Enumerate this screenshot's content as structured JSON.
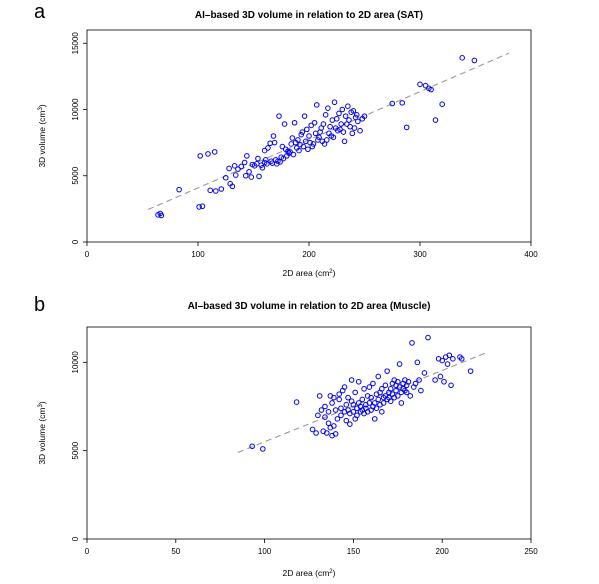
{
  "panels": {
    "a": {
      "letter": "a",
      "title": "AI–based 3D volume in relation to 2D area (SAT)",
      "xlabel": "2D area (cm",
      "ylabel": "3D volume (cm",
      "xlabel_sup": "2",
      "ylabel_sup": "3"
    },
    "b": {
      "letter": "b",
      "title": "AI–based 3D volume in relation to 2D area (Muscle)",
      "xlabel": "2D area (cm",
      "ylabel": "3D volume (cm",
      "xlabel_sup": "2",
      "ylabel_sup": "3"
    }
  },
  "colors": {
    "points": "#0000ff",
    "fit": "#999999",
    "axes": "#000000"
  },
  "chart_data": [
    {
      "type": "scatter",
      "title": "AI–based 3D volume in relation to 2D area (SAT)",
      "xlabel": "2D area (cm2)",
      "ylabel": "3D volume (cm3)",
      "xlim": [
        0,
        400
      ],
      "ylim": [
        0,
        16000
      ],
      "xticks": [
        0,
        100,
        200,
        300,
        400
      ],
      "yticks": [
        0,
        5000,
        10000,
        15000
      ],
      "fit_line": {
        "x": [
          55,
          380
        ],
        "y": [
          2450,
          14250
        ]
      },
      "points": [
        [
          64,
          2050
        ],
        [
          66,
          2150
        ],
        [
          67,
          2000
        ],
        [
          83,
          3950
        ],
        [
          101,
          2650
        ],
        [
          104,
          2700
        ],
        [
          102,
          6500
        ],
        [
          109,
          6650
        ],
        [
          115,
          6800
        ],
        [
          111,
          3900
        ],
        [
          116,
          3850
        ],
        [
          121,
          4000
        ],
        [
          125,
          4850
        ],
        [
          128,
          5550
        ],
        [
          129,
          4400
        ],
        [
          131,
          4200
        ],
        [
          133,
          5750
        ],
        [
          134,
          5050
        ],
        [
          136,
          5500
        ],
        [
          139,
          5700
        ],
        [
          142,
          6000
        ],
        [
          143,
          5000
        ],
        [
          144,
          6500
        ],
        [
          146,
          5300
        ],
        [
          148,
          4900
        ],
        [
          149,
          5850
        ],
        [
          151,
          5750
        ],
        [
          153,
          5900
        ],
        [
          154,
          6300
        ],
        [
          155,
          4950
        ],
        [
          157,
          5800
        ],
        [
          158,
          5600
        ],
        [
          160,
          6000
        ],
        [
          160,
          6900
        ],
        [
          161,
          6200
        ],
        [
          162,
          5900
        ],
        [
          163,
          7100
        ],
        [
          165,
          7450
        ],
        [
          166,
          6100
        ],
        [
          167,
          5950
        ],
        [
          168,
          8000
        ],
        [
          169,
          7500
        ],
        [
          170,
          6200
        ],
        [
          171,
          5900
        ],
        [
          172,
          6100
        ],
        [
          173,
          9500
        ],
        [
          174,
          6050
        ],
        [
          175,
          6400
        ],
        [
          176,
          7200
        ],
        [
          177,
          6300
        ],
        [
          178,
          8900
        ],
        [
          179,
          7000
        ],
        [
          180,
          6500
        ],
        [
          181,
          6850
        ],
        [
          182,
          6700
        ],
        [
          183,
          6800
        ],
        [
          184,
          7400
        ],
        [
          185,
          7850
        ],
        [
          186,
          6600
        ],
        [
          187,
          9000
        ],
        [
          188,
          7500
        ],
        [
          189,
          7100
        ],
        [
          190,
          7700
        ],
        [
          191,
          6900
        ],
        [
          192,
          7350
        ],
        [
          193,
          8100
        ],
        [
          194,
          8300
        ],
        [
          195,
          7200
        ],
        [
          196,
          9500
        ],
        [
          197,
          7600
        ],
        [
          198,
          8500
        ],
        [
          199,
          7000
        ],
        [
          200,
          8000
        ],
        [
          201,
          7500
        ],
        [
          202,
          8800
        ],
        [
          203,
          7200
        ],
        [
          204,
          7400
        ],
        [
          205,
          9000
        ],
        [
          206,
          8200
        ],
        [
          207,
          10350
        ],
        [
          208,
          7700
        ],
        [
          209,
          7900
        ],
        [
          210,
          8300
        ],
        [
          211,
          8600
        ],
        [
          212,
          7600
        ],
        [
          213,
          8900
        ],
        [
          214,
          7400
        ],
        [
          215,
          9600
        ],
        [
          216,
          7700
        ],
        [
          217,
          10100
        ],
        [
          218,
          8200
        ],
        [
          219,
          8700
        ],
        [
          220,
          8000
        ],
        [
          221,
          9200
        ],
        [
          222,
          7900
        ],
        [
          223,
          10550
        ],
        [
          224,
          8600
        ],
        [
          225,
          9300
        ],
        [
          226,
          8400
        ],
        [
          227,
          9700
        ],
        [
          228,
          8500
        ],
        [
          229,
          8900
        ],
        [
          230,
          10000
        ],
        [
          231,
          8300
        ],
        [
          232,
          7600
        ],
        [
          233,
          9500
        ],
        [
          234,
          8900
        ],
        [
          235,
          10250
        ],
        [
          236,
          9200
        ],
        [
          237,
          8700
        ],
        [
          238,
          9800
        ],
        [
          239,
          8200
        ],
        [
          240,
          9900
        ],
        [
          241,
          8600
        ],
        [
          242,
          9400
        ],
        [
          243,
          9600
        ],
        [
          244,
          9100
        ],
        [
          246,
          8400
        ],
        [
          248,
          9300
        ],
        [
          250,
          9500
        ],
        [
          275,
          10450
        ],
        [
          284,
          10500
        ],
        [
          288,
          8650
        ],
        [
          300,
          11900
        ],
        [
          305,
          11800
        ],
        [
          308,
          11600
        ],
        [
          310,
          11500
        ],
        [
          314,
          9200
        ],
        [
          320,
          10400
        ],
        [
          338,
          13900
        ],
        [
          349,
          13700
        ]
      ]
    },
    {
      "type": "scatter",
      "title": "AI–based 3D volume in relation to 2D area (Muscle)",
      "xlabel": "2D area (cm2)",
      "ylabel": "3D volume (cm3)",
      "xlim": [
        0,
        250
      ],
      "ylim": [
        0,
        12000
      ],
      "xticks": [
        0,
        50,
        100,
        150,
        200,
        250
      ],
      "yticks": [
        0,
        5000,
        10000
      ],
      "fit_line": {
        "x": [
          85,
          225
        ],
        "y": [
          4900,
          10550
        ]
      },
      "points": [
        [
          93,
          5250
        ],
        [
          99,
          5100
        ],
        [
          118,
          7750
        ],
        [
          127,
          6200
        ],
        [
          129,
          6000
        ],
        [
          130,
          7000
        ],
        [
          131,
          8100
        ],
        [
          132,
          7300
        ],
        [
          133,
          6100
        ],
        [
          134,
          7500
        ],
        [
          134,
          6900
        ],
        [
          135,
          6000
        ],
        [
          136,
          6550
        ],
        [
          136,
          7200
        ],
        [
          137,
          8100
        ],
        [
          137,
          6300
        ],
        [
          138,
          5850
        ],
        [
          138,
          7700
        ],
        [
          139,
          6400
        ],
        [
          139,
          8000
        ],
        [
          140,
          7300
        ],
        [
          140,
          5950
        ],
        [
          141,
          6800
        ],
        [
          142,
          7900
        ],
        [
          142,
          8200
        ],
        [
          143,
          7400
        ],
        [
          143,
          7000
        ],
        [
          144,
          8400
        ],
        [
          145,
          7200
        ],
        [
          145,
          8600
        ],
        [
          146,
          6700
        ],
        [
          146,
          7600
        ],
        [
          147,
          7300
        ],
        [
          147,
          8000
        ],
        [
          148,
          6500
        ],
        [
          148,
          7100
        ],
        [
          149,
          7800
        ],
        [
          149,
          9000
        ],
        [
          150,
          7200
        ],
        [
          150,
          7600
        ],
        [
          151,
          6800
        ],
        [
          151,
          8300
        ],
        [
          152,
          7400
        ],
        [
          152,
          7000
        ],
        [
          153,
          7700
        ],
        [
          153,
          8900
        ],
        [
          154,
          7200
        ],
        [
          154,
          7500
        ],
        [
          155,
          7300
        ],
        [
          155,
          7900
        ],
        [
          156,
          7100
        ],
        [
          156,
          8500
        ],
        [
          157,
          7600
        ],
        [
          157,
          7400
        ],
        [
          158,
          8100
        ],
        [
          158,
          7200
        ],
        [
          159,
          7700
        ],
        [
          159,
          8600
        ],
        [
          160,
          7300
        ],
        [
          160,
          8000
        ],
        [
          161,
          7500
        ],
        [
          161,
          8800
        ],
        [
          162,
          7700
        ],
        [
          162,
          6800
        ],
        [
          163,
          8200
        ],
        [
          163,
          7400
        ],
        [
          164,
          7900
        ],
        [
          164,
          9200
        ],
        [
          165,
          7600
        ],
        [
          165,
          8300
        ],
        [
          166,
          7200
        ],
        [
          166,
          8500
        ],
        [
          167,
          8000
        ],
        [
          167,
          7700
        ],
        [
          168,
          8700
        ],
        [
          168,
          8100
        ],
        [
          169,
          7900
        ],
        [
          169,
          9500
        ],
        [
          170,
          8300
        ],
        [
          170,
          8000
        ],
        [
          171,
          8500
        ],
        [
          171,
          7800
        ],
        [
          172,
          8800
        ],
        [
          172,
          8200
        ],
        [
          173,
          8000
        ],
        [
          173,
          9000
        ],
        [
          174,
          8400
        ],
        [
          174,
          8700
        ],
        [
          175,
          8100
        ],
        [
          175,
          8900
        ],
        [
          176,
          8600
        ],
        [
          176,
          9900
        ],
        [
          177,
          8300
        ],
        [
          177,
          7700
        ],
        [
          178,
          8800
        ],
        [
          178,
          8500
        ],
        [
          179,
          8400
        ],
        [
          179,
          9000
        ],
        [
          180,
          8700
        ],
        [
          180,
          8300
        ],
        [
          181,
          8900
        ],
        [
          182,
          8100
        ],
        [
          183,
          11100
        ],
        [
          184,
          8600
        ],
        [
          185,
          8800
        ],
        [
          186,
          10000
        ],
        [
          187,
          9000
        ],
        [
          188,
          8400
        ],
        [
          190,
          9400
        ],
        [
          192,
          11400
        ],
        [
          196,
          9000
        ],
        [
          198,
          10200
        ],
        [
          199,
          9200
        ],
        [
          200,
          10100
        ],
        [
          201,
          8900
        ],
        [
          202,
          10300
        ],
        [
          203,
          9900
        ],
        [
          204,
          10400
        ],
        [
          205,
          8700
        ],
        [
          206,
          10200
        ],
        [
          210,
          10300
        ],
        [
          211,
          10200
        ],
        [
          216,
          9500
        ]
      ]
    }
  ]
}
